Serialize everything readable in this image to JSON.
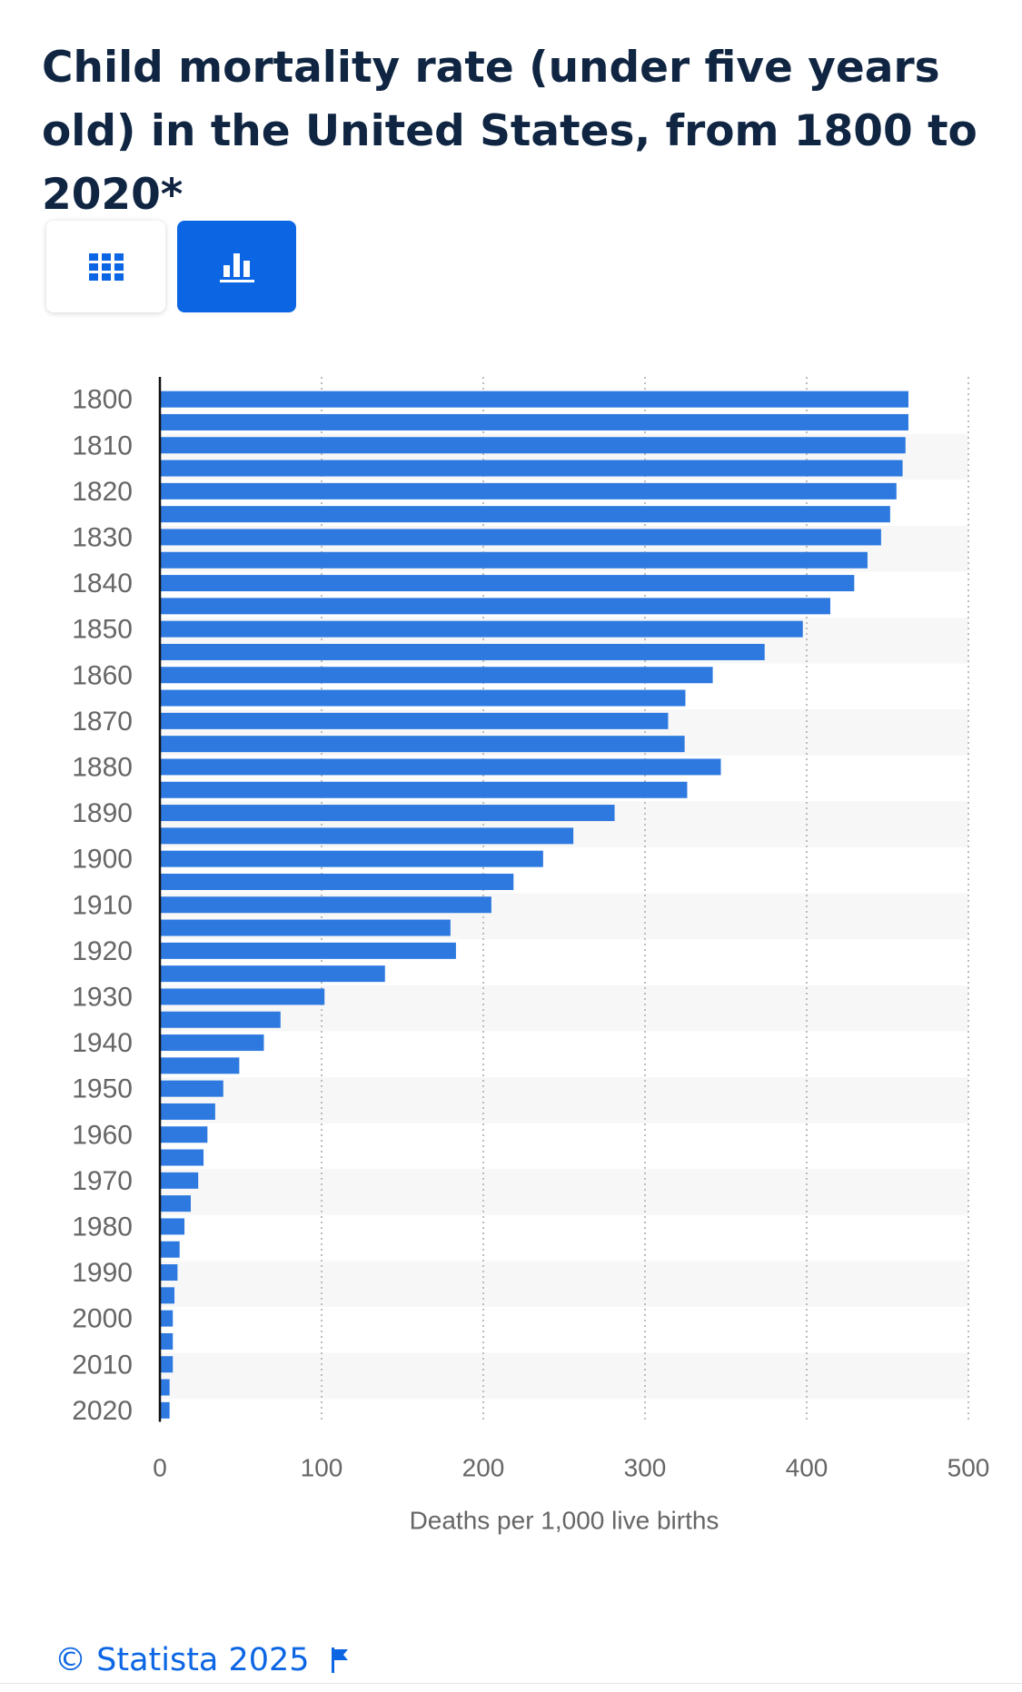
{
  "title": "Child mortality rate (under five years old) in the United States, from 1800 to 2020*",
  "toggles": {
    "table_icon": "table-grid-icon",
    "chart_icon": "bar-chart-icon",
    "active": "chart"
  },
  "colors": {
    "bar": "#2d79e0",
    "accent": "#0c66e4",
    "title": "#0f2542",
    "band": "#f7f7f7"
  },
  "chart_data": {
    "type": "bar",
    "orientation": "horizontal",
    "categories": [
      "1800",
      "1805",
      "1810",
      "1815",
      "1820",
      "1825",
      "1830",
      "1835",
      "1840",
      "1845",
      "1850",
      "1855",
      "1860",
      "1865",
      "1870",
      "1875",
      "1880",
      "1885",
      "1890",
      "1895",
      "1900",
      "1905",
      "1910",
      "1915",
      "1920",
      "1925",
      "1930",
      "1935",
      "1940",
      "1945",
      "1950",
      "1955",
      "1960",
      "1965",
      "1970",
      "1975",
      "1980",
      "1985",
      "1990",
      "1995",
      "2000",
      "2005",
      "2010",
      "2015",
      "2020"
    ],
    "category_labels": [
      "1800",
      "",
      "1810",
      "",
      "1820",
      "",
      "1830",
      "",
      "1840",
      "",
      "1850",
      "",
      "1860",
      "",
      "1870",
      "",
      "1880",
      "",
      "1890",
      "",
      "1900",
      "",
      "1910",
      "",
      "1920",
      "",
      "1930",
      "",
      "1940",
      "",
      "1950",
      "",
      "1960",
      "",
      "1970",
      "",
      "1980",
      "",
      "1990",
      "",
      "2000",
      "",
      "2010",
      "",
      "2020"
    ],
    "values": [
      462.9,
      462.9,
      461.1,
      459.3,
      455.5,
      451.6,
      446.0,
      437.6,
      429.4,
      414.6,
      397.6,
      374.0,
      341.9,
      325.0,
      314.3,
      324.5,
      346.9,
      326.1,
      281.2,
      255.7,
      237.0,
      218.7,
      205.0,
      179.7,
      183.1,
      139.2,
      101.8,
      74.6,
      64.3,
      49.1,
      39.2,
      34.2,
      29.4,
      27.0,
      23.7,
      19.1,
      15.2,
      12.2,
      10.9,
      9.0,
      8.0,
      8.0,
      8.0,
      6.0,
      6.0
    ],
    "xlabel": "Deaths per 1,000 live births",
    "ylabel": "",
    "xlim": [
      0,
      500
    ],
    "xticks": [
      0,
      100,
      200,
      300,
      400,
      500
    ],
    "grid": true,
    "legend": "none"
  },
  "footer": {
    "credit": "© Statista 2025",
    "flag_icon": "flag-icon"
  }
}
